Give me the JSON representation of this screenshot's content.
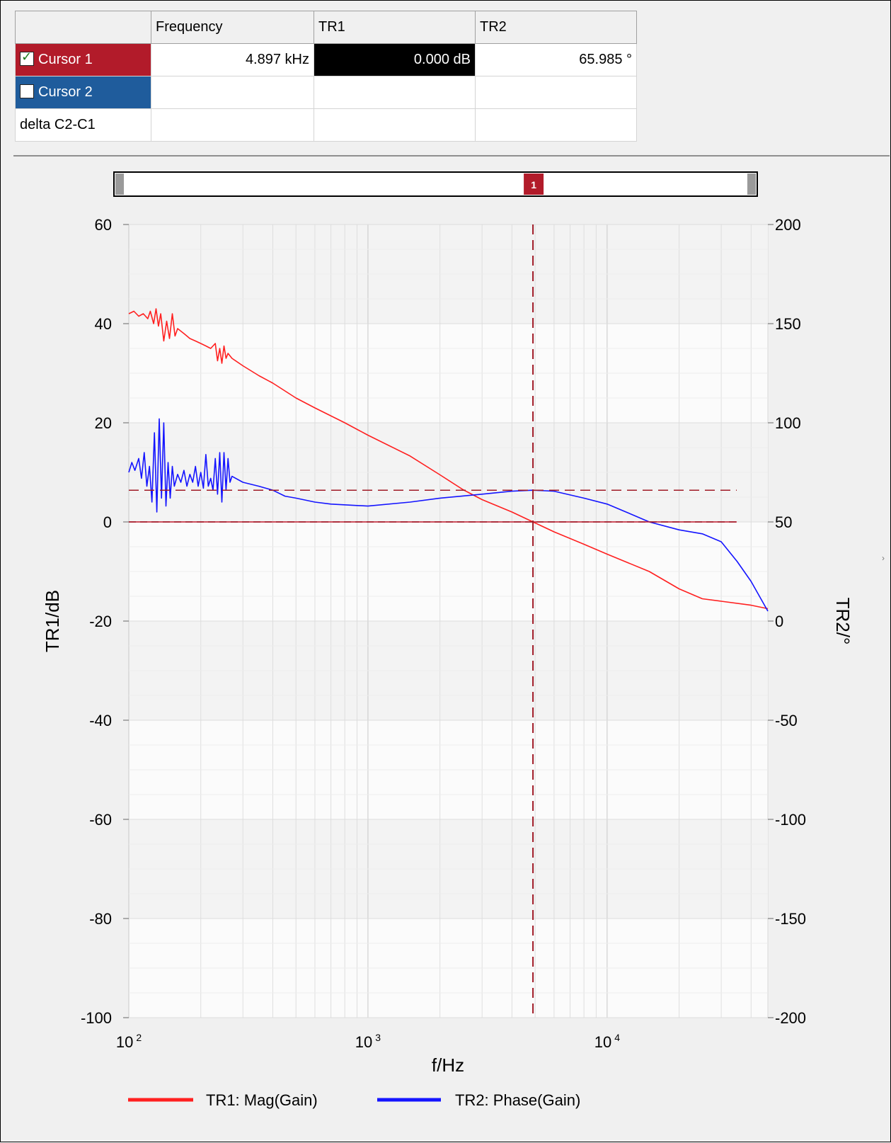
{
  "cursor_table": {
    "headers": [
      "",
      "Frequency",
      "TR1",
      "TR2"
    ],
    "rows": [
      {
        "label": "Cursor 1",
        "checked": true,
        "frequency": "4.897 kHz",
        "tr1": "0.000 dB",
        "tr2": "65.985 °",
        "color": "#b21b2a"
      },
      {
        "label": "Cursor 2",
        "checked": false,
        "frequency": "",
        "tr1": "",
        "tr2": "",
        "color": "#1f5c9c"
      },
      {
        "label": "delta C2-C1",
        "frequency": "",
        "tr1": "",
        "tr2": ""
      }
    ]
  },
  "cursor_bar": {
    "marker_label": "1"
  },
  "chart_data": {
    "type": "line",
    "title": "",
    "xlabel": "f/Hz",
    "ylabel_left": "TR1/dB",
    "ylabel_right": "TR2/°",
    "x_scale": "log",
    "xlim": [
      100,
      47000
    ],
    "ylim_left": [
      -100,
      60
    ],
    "ylim_right": [
      -200,
      200
    ],
    "x_ticks": [
      {
        "value": 100,
        "base": "10",
        "exp": "2"
      },
      {
        "value": 1000,
        "base": "10",
        "exp": "3"
      },
      {
        "value": 10000,
        "base": "10",
        "exp": "4"
      }
    ],
    "y_ticks_left": [
      "60",
      "40",
      "20",
      "0",
      "-20",
      "-40",
      "-60",
      "-80",
      "-100"
    ],
    "y_ticks_right": [
      "200",
      "150",
      "100",
      "50",
      "0",
      "-50",
      "-100",
      "-150",
      "-200"
    ],
    "grid": true,
    "legend_position": "bottom",
    "series": [
      {
        "name": "TR1: Mag(Gain)",
        "axis": "left",
        "color": "#ff2020",
        "points": [
          [
            100,
            42
          ],
          [
            105,
            42.5
          ],
          [
            110,
            41.5
          ],
          [
            115,
            42
          ],
          [
            120,
            41
          ],
          [
            123,
            42.5
          ],
          [
            127,
            40
          ],
          [
            130,
            43
          ],
          [
            133,
            39.5
          ],
          [
            136,
            42
          ],
          [
            140,
            36.5
          ],
          [
            144,
            40.5
          ],
          [
            148,
            37
          ],
          [
            152,
            42
          ],
          [
            156,
            37.5
          ],
          [
            160,
            39
          ],
          [
            170,
            38
          ],
          [
            180,
            37
          ],
          [
            190,
            36.5
          ],
          [
            200,
            36
          ],
          [
            210,
            35.5
          ],
          [
            220,
            35
          ],
          [
            230,
            36
          ],
          [
            235,
            32.5
          ],
          [
            240,
            35
          ],
          [
            245,
            32
          ],
          [
            250,
            35.5
          ],
          [
            255,
            33
          ],
          [
            260,
            34
          ],
          [
            270,
            33
          ],
          [
            300,
            31.5
          ],
          [
            350,
            29.5
          ],
          [
            400,
            28
          ],
          [
            500,
            25
          ],
          [
            600,
            23
          ],
          [
            800,
            20
          ],
          [
            1000,
            17.5
          ],
          [
            1500,
            13.3
          ],
          [
            2000,
            9.5
          ],
          [
            2500,
            6.5
          ],
          [
            3000,
            4.5
          ],
          [
            4000,
            2
          ],
          [
            4897,
            0
          ],
          [
            6000,
            -2
          ],
          [
            8000,
            -4.5
          ],
          [
            10000,
            -6.5
          ],
          [
            15000,
            -10
          ],
          [
            20000,
            -13.5
          ],
          [
            25000,
            -15.5
          ],
          [
            30000,
            -16
          ],
          [
            40000,
            -16.8
          ],
          [
            47000,
            -17.5
          ]
        ]
      },
      {
        "name": "TR2: Phase(Gain)",
        "axis": "right",
        "color": "#1414ff",
        "points": [
          [
            100,
            75
          ],
          [
            103,
            80
          ],
          [
            106,
            76
          ],
          [
            110,
            82
          ],
          [
            113,
            72
          ],
          [
            116,
            85
          ],
          [
            119,
            68
          ],
          [
            122,
            78
          ],
          [
            125,
            60
          ],
          [
            128,
            95
          ],
          [
            131,
            55
          ],
          [
            134,
            102
          ],
          [
            137,
            62
          ],
          [
            140,
            100
          ],
          [
            143,
            58
          ],
          [
            146,
            80
          ],
          [
            149,
            62
          ],
          [
            152,
            78
          ],
          [
            155,
            68
          ],
          [
            160,
            74
          ],
          [
            165,
            70
          ],
          [
            170,
            76
          ],
          [
            175,
            68
          ],
          [
            180,
            74
          ],
          [
            185,
            70
          ],
          [
            190,
            78
          ],
          [
            195,
            68
          ],
          [
            200,
            75
          ],
          [
            205,
            67
          ],
          [
            210,
            84
          ],
          [
            215,
            68
          ],
          [
            220,
            72
          ],
          [
            225,
            66
          ],
          [
            230,
            82
          ],
          [
            235,
            64
          ],
          [
            240,
            85
          ],
          [
            245,
            60
          ],
          [
            250,
            85
          ],
          [
            255,
            66
          ],
          [
            260,
            82
          ],
          [
            265,
            70
          ],
          [
            270,
            73
          ],
          [
            300,
            70
          ],
          [
            350,
            68
          ],
          [
            400,
            66
          ],
          [
            450,
            63
          ],
          [
            500,
            62
          ],
          [
            600,
            60
          ],
          [
            700,
            59
          ],
          [
            1000,
            58
          ],
          [
            1500,
            60
          ],
          [
            2000,
            62
          ],
          [
            3000,
            64
          ],
          [
            4000,
            65.5
          ],
          [
            4897,
            66
          ],
          [
            6000,
            65.5
          ],
          [
            8000,
            62
          ],
          [
            10000,
            59
          ],
          [
            12000,
            55
          ],
          [
            15000,
            50
          ],
          [
            20000,
            46
          ],
          [
            25000,
            44
          ],
          [
            30000,
            40
          ],
          [
            35000,
            30
          ],
          [
            40000,
            20
          ],
          [
            47000,
            5
          ]
        ]
      }
    ],
    "cursor": {
      "frequency": 4897,
      "tr1": 0.0,
      "tr2": 65.985
    },
    "reference_level": 0
  }
}
